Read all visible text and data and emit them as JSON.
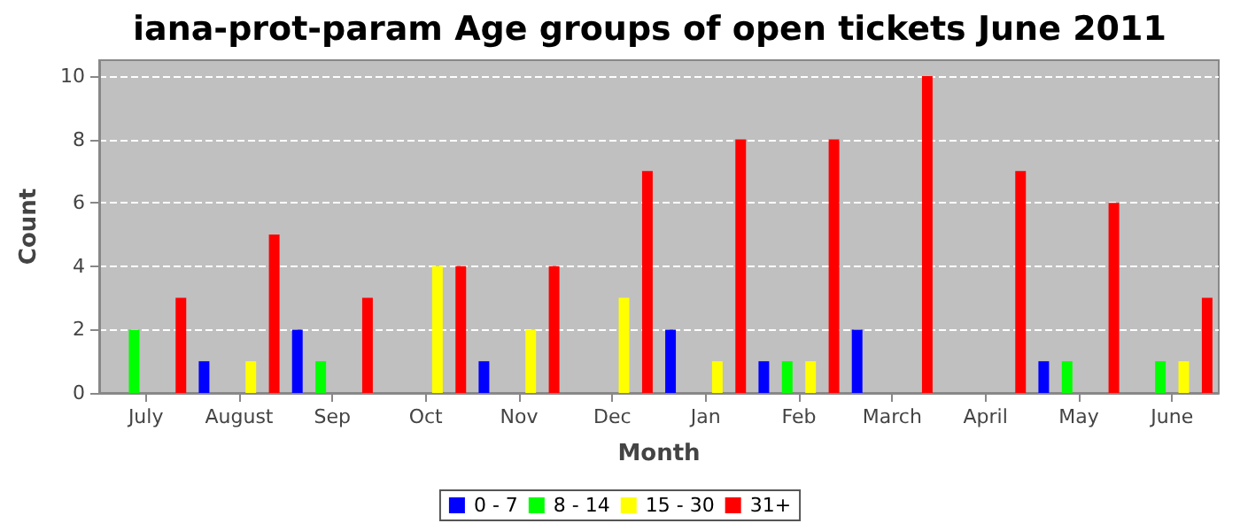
{
  "chart_data": {
    "type": "bar",
    "title": "iana-prot-param Age groups of open tickets June 2011",
    "xlabel": "Month",
    "ylabel": "Count",
    "categories": [
      "July",
      "August",
      "Sep",
      "Oct",
      "Nov",
      "Dec",
      "Jan",
      "Feb",
      "March",
      "April",
      "May",
      "June"
    ],
    "series": [
      {
        "name": "0 - 7",
        "color": "#0000ff",
        "values": [
          0,
          1,
          2,
          0,
          1,
          0,
          2,
          1,
          2,
          0,
          1,
          0
        ]
      },
      {
        "name": "8 - 14",
        "color": "#00ff00",
        "values": [
          2,
          0,
          1,
          0,
          0,
          0,
          0,
          1,
          0,
          0,
          1,
          1
        ]
      },
      {
        "name": "15 - 30",
        "color": "#ffff00",
        "values": [
          0,
          1,
          0,
          4,
          2,
          3,
          1,
          1,
          0,
          0,
          0,
          1
        ]
      },
      {
        "name": "31+",
        "color": "#ff0000",
        "values": [
          3,
          5,
          3,
          4,
          4,
          7,
          8,
          8,
          10,
          7,
          6,
          3
        ]
      }
    ],
    "ylim": [
      0,
      10.5
    ],
    "yticks": [
      0,
      2,
      4,
      6,
      8,
      10
    ],
    "grid": "y",
    "legend": "bottom"
  }
}
